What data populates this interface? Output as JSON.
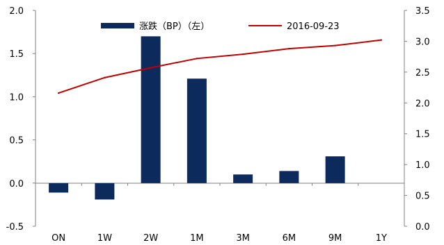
{
  "chart_data": {
    "type": "bar+line",
    "categories": [
      "ON",
      "1W",
      "2W",
      "1M",
      "3M",
      "6M",
      "9M",
      "1Y"
    ],
    "series": [
      {
        "name": "涨跌（BP）（左）",
        "type": "bar",
        "axis": "left",
        "color": "#0d2a5c",
        "values": [
          -0.11,
          -0.19,
          1.7,
          1.21,
          0.1,
          0.14,
          0.31,
          null
        ]
      },
      {
        "name": "2016-09-23",
        "type": "line",
        "axis": "right",
        "color": "#c00000",
        "values": [
          2.16,
          2.41,
          2.57,
          2.72,
          2.79,
          2.88,
          2.93,
          3.02
        ]
      }
    ],
    "y_left": {
      "min": -0.5,
      "max": 2.0,
      "ticks": [
        "-0.5",
        "0.0",
        "0.5",
        "1.0",
        "1.5",
        "2.0"
      ]
    },
    "y_right": {
      "min": 0.0,
      "max": 3.5,
      "ticks": [
        "0.0",
        "0.5",
        "1.0",
        "1.5",
        "2.0",
        "2.5",
        "3.0",
        "3.5"
      ]
    },
    "grid": false,
    "legend_position": "top-center"
  }
}
